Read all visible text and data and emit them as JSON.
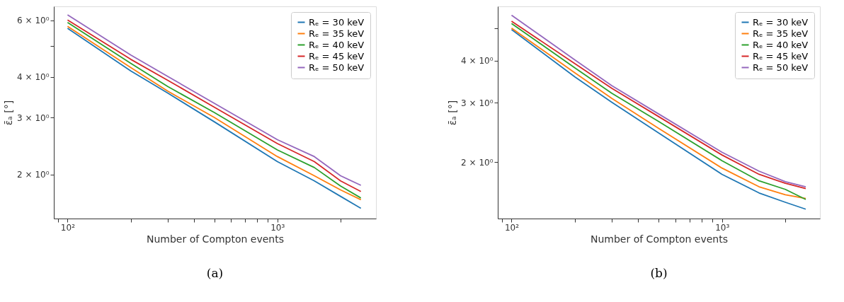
{
  "chart_data": [
    {
      "type": "line",
      "xlabel": "Number of Compton events",
      "ylabel": "ε̄ₐ [°]",
      "log": "xy",
      "grid": false,
      "legend": "top right",
      "marker": "none",
      "line_style": "solid",
      "xlim": [
        86,
        2950
      ],
      "ylim": [
        1.46,
        6.62
      ],
      "xticks": [
        {
          "value": 90,
          "label": null
        },
        {
          "value": 100,
          "label": "10²"
        },
        {
          "value": 200,
          "label": null
        },
        {
          "value": 300,
          "label": null
        },
        {
          "value": 400,
          "label": null
        },
        {
          "value": 500,
          "label": null
        },
        {
          "value": 600,
          "label": null
        },
        {
          "value": 700,
          "label": null
        },
        {
          "value": 800,
          "label": null
        },
        {
          "value": 900,
          "label": null
        },
        {
          "value": 1000,
          "label": "10³"
        },
        {
          "value": 2000,
          "label": null
        }
      ],
      "yticks": [
        {
          "value": 2,
          "label": "2 × 10⁰"
        },
        {
          "value": 3,
          "label": "3 × 10⁰"
        },
        {
          "value": 4,
          "label": "4 × 10⁰"
        },
        {
          "value": 5,
          "label": null
        },
        {
          "value": 6,
          "label": "6 × 10⁰"
        }
      ],
      "x": [
        100,
        200,
        300,
        500,
        1000,
        1500,
        2000,
        2500
      ],
      "series": [
        {
          "name": "Rₑ = 30 keV",
          "color": "#1f77b4",
          "values": [
            5.66,
            4.18,
            3.57,
            2.91,
            2.19,
            1.91,
            1.71,
            1.57
          ]
        },
        {
          "name": "Rₑ = 35 keV",
          "color": "#ff7f0e",
          "values": [
            5.74,
            4.28,
            3.62,
            3.0,
            2.27,
            1.98,
            1.79,
            1.67
          ]
        },
        {
          "name": "Rₑ = 40 keV",
          "color": "#2ca02c",
          "values": [
            5.9,
            4.41,
            3.74,
            3.11,
            2.38,
            2.1,
            1.84,
            1.69
          ]
        },
        {
          "name": "Rₑ = 45 keV",
          "color": "#d62728",
          "values": [
            6.01,
            4.54,
            3.91,
            3.23,
            2.49,
            2.19,
            1.91,
            1.77
          ]
        },
        {
          "name": "Rₑ = 50 keV",
          "color": "#9467bd",
          "values": [
            6.23,
            4.68,
            4.02,
            3.32,
            2.56,
            2.27,
            1.98,
            1.85
          ]
        }
      ],
      "annotations": [
        "(a)"
      ]
    },
    {
      "type": "line",
      "xlabel": "Number of Compton events",
      "ylabel": "ε̄ₐ [°]",
      "log": "xy",
      "grid": false,
      "legend": "top right",
      "marker": "none",
      "line_style": "solid",
      "xlim": [
        86,
        2920
      ],
      "ylim": [
        1.36,
        5.8
      ],
      "xticks": [
        {
          "value": 90,
          "label": null
        },
        {
          "value": 100,
          "label": "10²"
        },
        {
          "value": 200,
          "label": null
        },
        {
          "value": 300,
          "label": null
        },
        {
          "value": 400,
          "label": null
        },
        {
          "value": 500,
          "label": null
        },
        {
          "value": 600,
          "label": null
        },
        {
          "value": 700,
          "label": null
        },
        {
          "value": 800,
          "label": null
        },
        {
          "value": 900,
          "label": null
        },
        {
          "value": 1000,
          "label": "10³"
        },
        {
          "value": 2000,
          "label": null
        }
      ],
      "yticks": [
        {
          "value": 2,
          "label": "2 × 10⁰"
        },
        {
          "value": 3,
          "label": "3 × 10⁰"
        },
        {
          "value": 4,
          "label": "4 × 10⁰"
        },
        {
          "value": 5,
          "label": null
        }
      ],
      "x": [
        100,
        200,
        300,
        500,
        1000,
        1500,
        2000,
        2500
      ],
      "series": [
        {
          "name": "Rₑ = 30 keV",
          "color": "#1f77b4",
          "values": [
            4.95,
            3.58,
            3.01,
            2.44,
            1.84,
            1.62,
            1.52,
            1.45
          ]
        },
        {
          "name": "Rₑ = 35 keV",
          "color": "#ff7f0e",
          "values": [
            5.0,
            3.68,
            3.09,
            2.52,
            1.92,
            1.69,
            1.6,
            1.56
          ]
        },
        {
          "name": "Rₑ = 40 keV",
          "color": "#2ca02c",
          "values": [
            5.16,
            3.81,
            3.2,
            2.64,
            2.02,
            1.76,
            1.66,
            1.55
          ]
        },
        {
          "name": "Rₑ = 45 keV",
          "color": "#d62728",
          "values": [
            5.24,
            3.92,
            3.31,
            2.73,
            2.1,
            1.84,
            1.73,
            1.67
          ]
        },
        {
          "name": "Rₑ = 50 keV",
          "color": "#9467bd",
          "values": [
            5.46,
            4.02,
            3.37,
            2.78,
            2.14,
            1.88,
            1.75,
            1.69
          ]
        }
      ],
      "annotations": [
        "(b)"
      ]
    }
  ]
}
